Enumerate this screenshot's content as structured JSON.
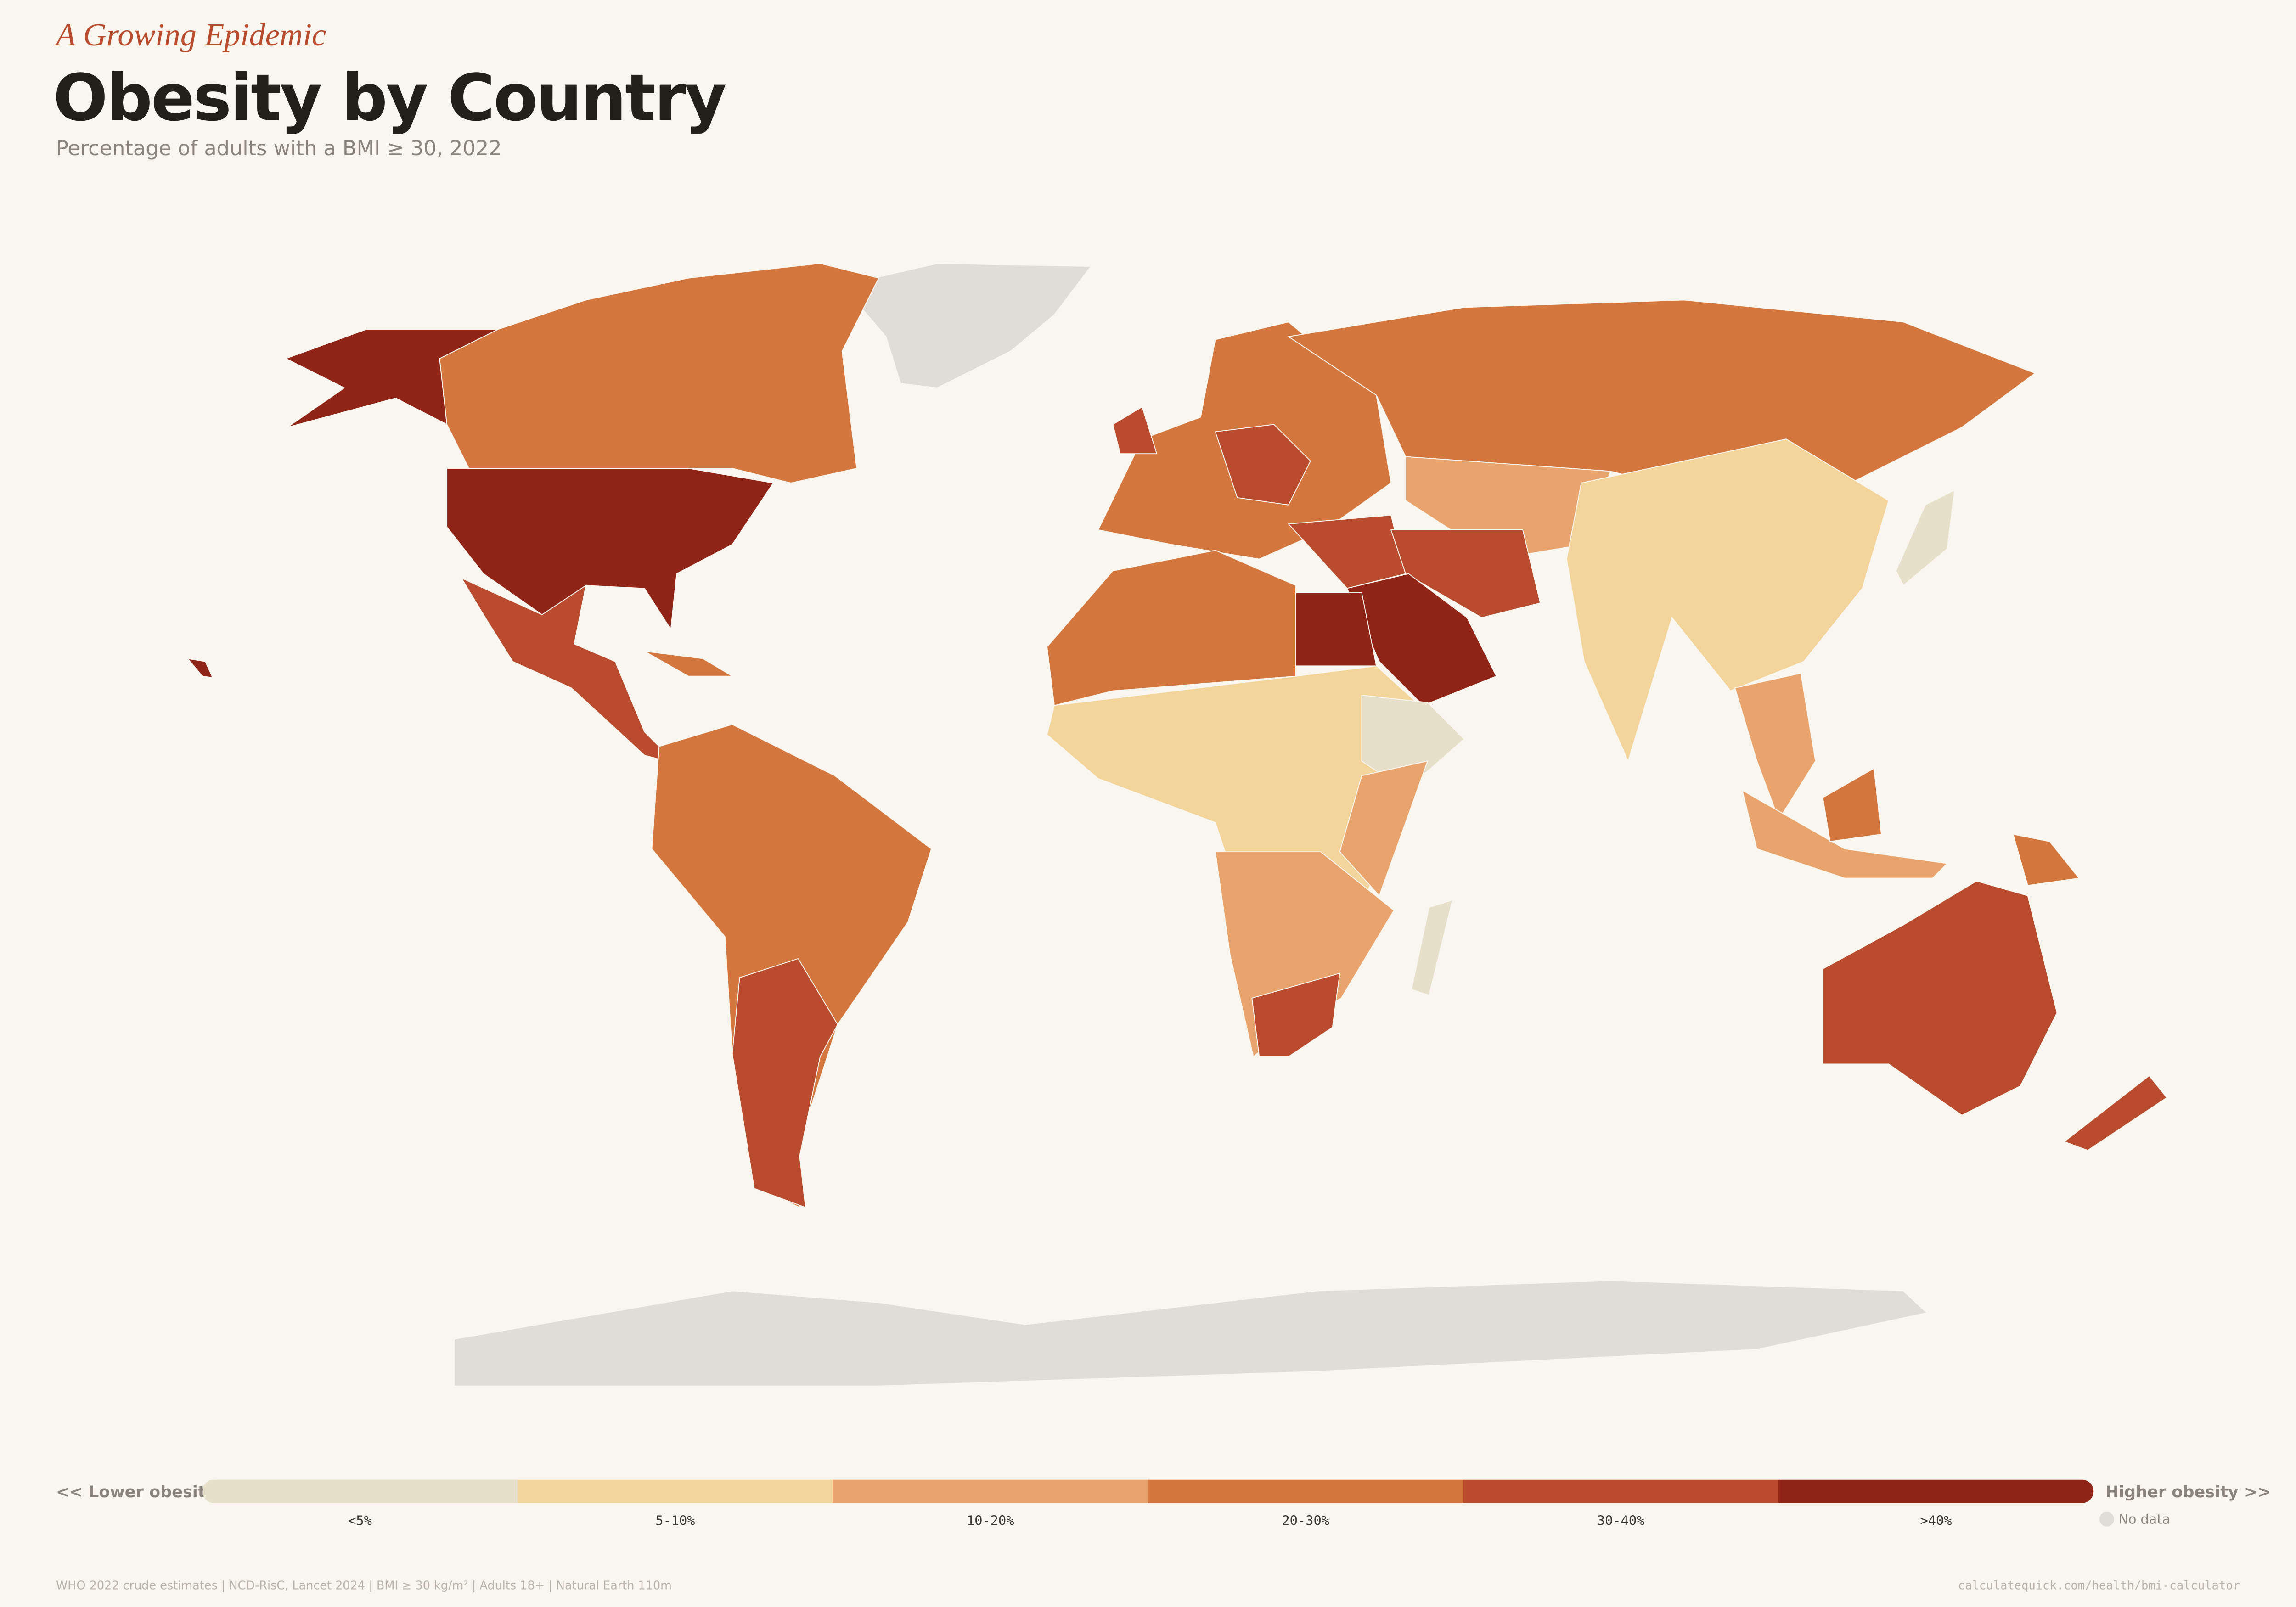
{
  "header": {
    "kicker": "A Growing Epidemic",
    "title": "Obesity by Country",
    "subtitle": "Percentage of adults with a BMI ≥ 30, 2022"
  },
  "legend": {
    "low_label": "<< Lower obesity",
    "high_label": "Higher obesity >>",
    "bins": [
      {
        "label": "<5%",
        "color": "#e6dfc9"
      },
      {
        "label": "5-10%",
        "color": "#f3d49b"
      },
      {
        "label": "10-20%",
        "color": "#e8a46c"
      },
      {
        "label": "20-30%",
        "color": "#d4773f"
      },
      {
        "label": "30-40%",
        "color": "#b94b2e"
      },
      {
        "label": ">40%",
        "color": "#8f2417"
      }
    ],
    "no_data": {
      "label": "No data",
      "color": "#e0ddd6"
    }
  },
  "footer": {
    "source": "WHO 2022 crude estimates  |  NCD-RisC, Lancet 2024  |  BMI ≥ 30 kg/m²  |  Adults 18+  |  Natural Earth 110m",
    "url": "calculatequick.com/health/bmi-calculator"
  }
}
